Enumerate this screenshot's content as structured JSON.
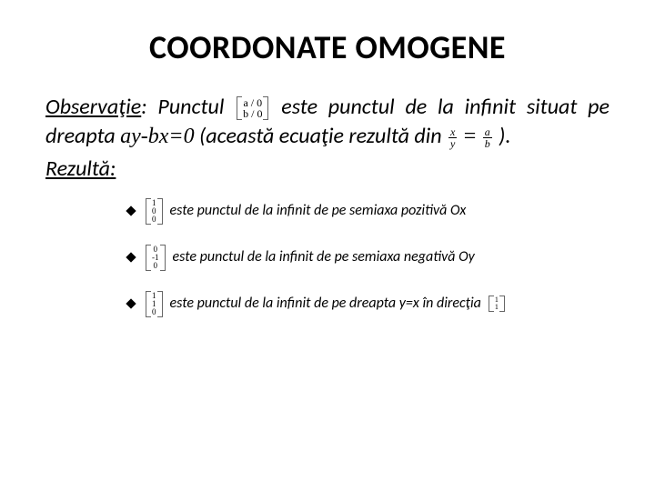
{
  "title": "COORDONATE OMOGENE",
  "para": {
    "obs_label": "Observaţie",
    "t1": ": Punctul ",
    "vec_main": [
      "a / 0",
      "b / 0"
    ],
    "t2": "este punctul de la infinit situat pe dreapta ",
    "equation": "ay-bx=0",
    "t3": " (această ecuaţie rezultă din ",
    "frac1": {
      "num": "x",
      "den": "y"
    },
    "eqsign": "=",
    "frac2": {
      "num": "a",
      "den": "b"
    },
    "t4": " )."
  },
  "rezulta": "Rezultă:",
  "bullets": [
    {
      "vec": [
        "1",
        "0",
        "0"
      ],
      "text": "este punctul de la infinit de pe semiaxa pozitivă Ox"
    },
    {
      "vec": [
        "0",
        "-1",
        "0"
      ],
      "text": "este punctul de la infinit de pe semiaxa negativă Oy"
    },
    {
      "vec": [
        "1",
        "1",
        "0"
      ],
      "text_pre": "este punctul de la infinit de pe dreapta y=x în direcţia",
      "trail_vec": [
        "1",
        "1"
      ]
    }
  ],
  "colors": {
    "text": "#000000",
    "bg": "#ffffff",
    "bracket": "#666666"
  },
  "fonts": {
    "title_size": 36,
    "body_size": 24,
    "bullet_size": 16
  }
}
